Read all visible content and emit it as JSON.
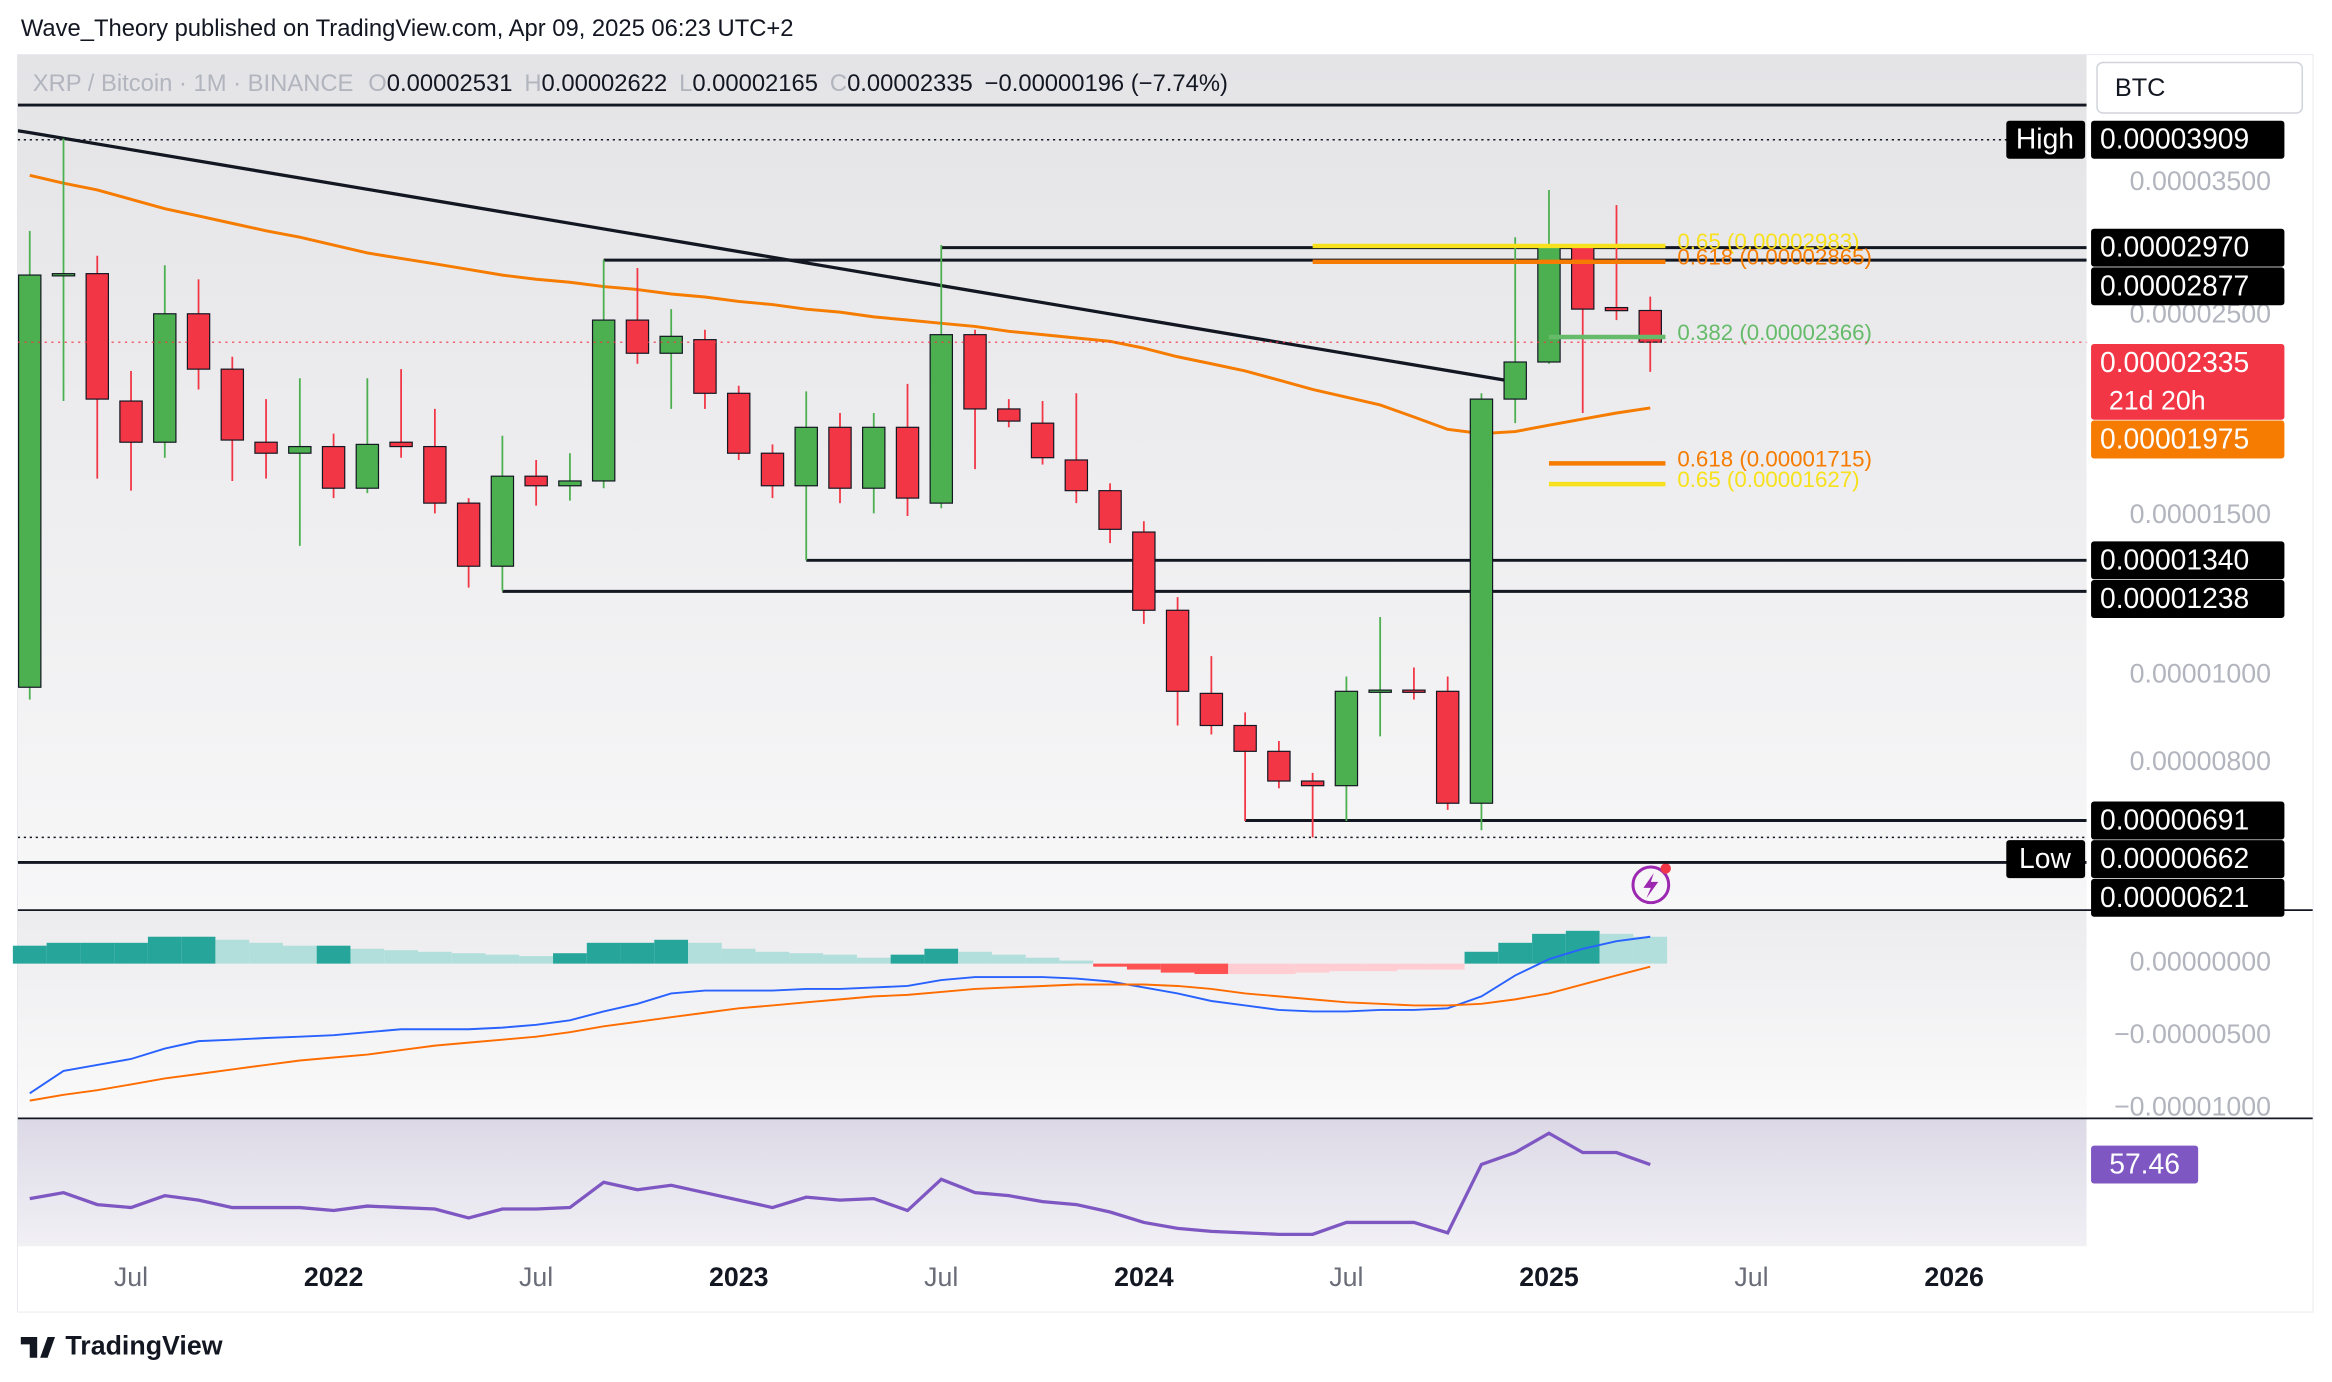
{
  "header": "Wave_Theory published on TradingView.com, Apr 09, 2025 06:23 UTC+2",
  "currency": "BTC",
  "logo": "TradingView",
  "chart_data": {
    "type": "candlestick",
    "title": "XRP / Bitcoin · 1M · BINANCE",
    "ohlc_letters": [
      "O",
      "H",
      "L",
      "C"
    ],
    "change_label": "−0.00000196 (−7.74%)",
    "countdown": "21d 20h",
    "log": true,
    "up_color": "#4caf50",
    "down_color": "#f23645",
    "x": [
      "2021-04",
      "2021-05",
      "2021-06",
      "2021-07",
      "2021-08",
      "2021-09",
      "2021-10",
      "2021-11",
      "2021-12",
      "2022-01",
      "2022-02",
      "2022-03",
      "2022-04",
      "2022-05",
      "2022-06",
      "2022-07",
      "2022-08",
      "2022-09",
      "2022-10",
      "2022-11",
      "2022-12",
      "2023-01",
      "2023-02",
      "2023-03",
      "2023-04",
      "2023-05",
      "2023-06",
      "2023-07",
      "2023-08",
      "2023-09",
      "2023-10",
      "2023-11",
      "2023-12",
      "2024-01",
      "2024-02",
      "2024-03",
      "2024-04",
      "2024-05",
      "2024-06",
      "2024-07",
      "2024-08",
      "2024-09",
      "2024-10",
      "2024-11",
      "2024-12",
      "2025-01",
      "2025-02",
      "2025-03",
      "2025-04"
    ],
    "open": [
      9.7e-06,
      2.77e-05,
      2.78e-05,
      2.01e-05,
      1.81e-05,
      2.51e-05,
      2.18e-05,
      1.81e-05,
      1.76e-05,
      1.79e-05,
      1.61e-05,
      1.81e-05,
      1.79e-05,
      1.55e-05,
      1.32e-05,
      1.66e-05,
      1.62e-05,
      1.64e-05,
      2.47e-05,
      2.27e-05,
      2.35e-05,
      2.05e-05,
      1.76e-05,
      1.62e-05,
      1.88e-05,
      1.61e-05,
      1.88e-05,
      1.55e-05,
      2.38e-05,
      1.97e-05,
      1.9e-05,
      1.73e-05,
      1.6e-05,
      1.44e-05,
      1.18e-05,
      9.55e-06,
      8.8e-06,
      8.24e-06,
      7.64e-06,
      7.55e-06,
      9.6e-06,
      9.63e-06,
      9.6e-06,
      7.22e-06,
      2.02e-05,
      2.22e-05,
      2.98e-05,
      2.55e-05,
      2.531e-05
    ],
    "high": [
      3.1e-05,
      3.92e-05,
      2.91e-05,
      2.17e-05,
      2.84e-05,
      2.74e-05,
      2.25e-05,
      2.02e-05,
      2.13e-05,
      1.85e-05,
      2.13e-05,
      2.18e-05,
      1.97e-05,
      1.57e-05,
      1.84e-05,
      1.73e-05,
      1.76e-05,
      2.88e-05,
      2.82e-05,
      2.54e-05,
      2.41e-05,
      2.09e-05,
      1.8e-05,
      2.06e-05,
      1.95e-05,
      1.95e-05,
      2.1e-05,
      2.99e-05,
      2.41e-05,
      2.02e-05,
      2.01e-05,
      2.05e-05,
      1.63e-05,
      1.48e-05,
      1.22e-05,
      1.05e-05,
      9.1e-06,
      8.46e-06,
      7.8e-06,
      9.97e-06,
      1.16e-05,
      1.02e-05,
      9.97e-06,
      2.05e-05,
      3.05e-05,
      3.44e-05,
      2.99e-05,
      3.31e-05,
      2.622e-05
    ],
    "low": [
      9.4e-06,
      2.01e-05,
      1.65e-05,
      1.6e-05,
      1.74e-05,
      2.07e-05,
      1.64e-05,
      1.65e-05,
      1.39e-05,
      1.57e-05,
      1.59e-05,
      1.74e-05,
      1.51e-05,
      1.25e-05,
      1.24e-05,
      1.54e-05,
      1.56e-05,
      1.61e-05,
      2.21e-05,
      1.97e-05,
      1.97e-05,
      1.73e-05,
      1.57e-05,
      1.34e-05,
      1.55e-05,
      1.51e-05,
      1.5e-05,
      1.53e-05,
      1.69e-05,
      1.88e-05,
      1.71e-05,
      1.55e-05,
      1.4e-05,
      1.14e-05,
      8.8e-06,
      8.6e-06,
      6.9e-06,
      7.5e-06,
      6.62e-06,
      6.9e-06,
      8.56e-06,
      9.4e-06,
      7.1e-06,
      6.74e-06,
      1.9e-05,
      2.21e-05,
      1.95e-05,
      2.47e-05,
      2.165e-05
    ],
    "close": [
      2.77e-05,
      2.78e-05,
      2.02e-05,
      1.81e-05,
      2.51e-05,
      2.18e-05,
      1.82e-05,
      1.76e-05,
      1.79e-05,
      1.61e-05,
      1.8e-05,
      1.79e-05,
      1.55e-05,
      1.32e-05,
      1.66e-05,
      1.62e-05,
      1.64e-05,
      2.47e-05,
      2.27e-05,
      2.37e-05,
      2.05e-05,
      1.76e-05,
      1.62e-05,
      1.88e-05,
      1.61e-05,
      1.88e-05,
      1.57e-05,
      2.38e-05,
      1.97e-05,
      1.91e-05,
      1.74e-05,
      1.6e-05,
      1.45e-05,
      1.18e-05,
      9.6e-06,
      8.8e-06,
      8.24e-06,
      7.64e-06,
      7.55e-06,
      9.6e-06,
      9.63e-06,
      9.6e-06,
      7.22e-06,
      2.02e-05,
      2.22e-05,
      2.98e-05,
      2.54e-05,
      2.53e-05,
      2.335e-05
    ],
    "ylim": [
      5.5e-06,
      4.85e-05
    ],
    "yticks": [
      {
        "value": 3.5e-05,
        "label": "0.00003500"
      },
      {
        "value": 2.5e-05,
        "label": "0.00002500"
      },
      {
        "value": 1.5e-05,
        "label": "0.00001500"
      },
      {
        "value": 1e-05,
        "label": "0.00001000"
      },
      {
        "value": 8e-06,
        "label": "0.00000800"
      }
    ],
    "xlim": [
      "2021-04",
      "2026-04"
    ],
    "xticks": [
      {
        "value": "2021-07",
        "label": "Jul"
      },
      {
        "value": "2022-01",
        "label": "2022"
      },
      {
        "value": "2022-07",
        "label": "Jul"
      },
      {
        "value": "2023-01",
        "label": "2023"
      },
      {
        "value": "2023-07",
        "label": "Jul"
      },
      {
        "value": "2024-01",
        "label": "2024"
      },
      {
        "value": "2024-07",
        "label": "Jul"
      },
      {
        "value": "2025-01",
        "label": "2025"
      },
      {
        "value": "2025-07",
        "label": "Jul"
      },
      {
        "value": "2026-01",
        "label": "2026"
      }
    ],
    "ma": {
      "color": "#f57c00",
      "values": [
        3.57e-05,
        3.5e-05,
        3.44e-05,
        3.36e-05,
        3.28e-05,
        3.22e-05,
        3.16e-05,
        3.1e-05,
        3.05e-05,
        2.99e-05,
        2.93e-05,
        2.89e-05,
        2.85e-05,
        2.81e-05,
        2.77e-05,
        2.74e-05,
        2.72e-05,
        2.69e-05,
        2.67e-05,
        2.64e-05,
        2.62e-05,
        2.59e-05,
        2.57e-05,
        2.54e-05,
        2.52e-05,
        2.49e-05,
        2.47e-05,
        2.45e-05,
        2.43e-05,
        2.4e-05,
        2.38e-05,
        2.36e-05,
        2.34e-05,
        2.3e-05,
        2.25e-05,
        2.21e-05,
        2.17e-05,
        2.12e-05,
        2.07e-05,
        2.03e-05,
        1.99e-05,
        1.93e-05,
        1.87e-05,
        1.85e-05,
        1.86e-05,
        1.89e-05,
        1.92e-05,
        1.95e-05,
        1.975e-05
      ]
    },
    "trendline": {
      "color": "#131722",
      "x": [
        "2021-04",
        "2024-12"
      ],
      "values": [
        3.98e-05,
        2.11e-05
      ]
    },
    "levels": [
      {
        "value": 4.27e-05
      },
      {
        "value": 3.909e-05,
        "label": "0.00003909",
        "tag": "High",
        "style": "dotted"
      },
      {
        "value": 2.97e-05,
        "label": "0.00002970",
        "start": "2023-07"
      },
      {
        "value": 2.877e-05,
        "label": "0.00002877",
        "start": "2022-09"
      },
      {
        "value": 1.34e-05,
        "label": "0.00001340",
        "start": "2023-03"
      },
      {
        "value": 1.238e-05,
        "label": "0.00001238",
        "start": "2022-06"
      },
      {
        "value": 6.91e-06,
        "label": "0.00000691",
        "start": "2024-04"
      },
      {
        "value": 6.62e-06,
        "label": "0.00000662",
        "tag": "Low",
        "style": "dotted"
      },
      {
        "value": 6.21e-06,
        "label": "0.00000621"
      }
    ],
    "fibs": [
      {
        "value": 2.983e-05,
        "label": "0.65 (0.00002983)",
        "color": "#f7e01c",
        "start": "2024-06"
      },
      {
        "value": 2.865e-05,
        "label": "0.618 (0.00002865)",
        "color": "#f57c00",
        "start": "2024-06"
      },
      {
        "value": 2.366e-05,
        "label": "0.382 (0.00002366)",
        "color": "#66bb6a",
        "start": "2025-01"
      },
      {
        "value": 1.715e-05,
        "label": "0.618 (0.00001715)",
        "color": "#f57c00",
        "start": "2025-01"
      },
      {
        "value": 1.627e-05,
        "label": "0.65 (0.00001627)",
        "color": "#f7e01c",
        "start": "2025-01"
      }
    ],
    "macd": {
      "ylim": [
        -1.07e-05,
        3.7e-06
      ],
      "yticks": [
        {
          "value": 0,
          "label": "0.00000000"
        },
        {
          "value": -5e-06,
          "label": "−0.00000500"
        },
        {
          "value": -1e-05,
          "label": "−0.00001000"
        }
      ],
      "line": {
        "color": "#2962ff",
        "values": [
          -8.97e-06,
          -7.42e-06,
          -7.01e-06,
          -6.6e-06,
          -5.88e-06,
          -5.36e-06,
          -5.26e-06,
          -5.15e-06,
          -5.05e-06,
          -4.95e-06,
          -4.74e-06,
          -4.54e-06,
          -4.54e-06,
          -4.54e-06,
          -4.43e-06,
          -4.23e-06,
          -3.92e-06,
          -3.3e-06,
          -2.78e-06,
          -2.06e-06,
          -1.86e-06,
          -1.86e-06,
          -1.86e-06,
          -1.75e-06,
          -1.75e-06,
          -1.65e-06,
          -1.55e-06,
          -1.13e-06,
          -9.3e-07,
          -9.3e-07,
          -9.3e-07,
          -1.03e-06,
          -1.24e-06,
          -1.65e-06,
          -2.06e-06,
          -2.58e-06,
          -2.89e-06,
          -3.2e-06,
          -3.3e-06,
          -3.3e-06,
          -3.2e-06,
          -3.2e-06,
          -3.09e-06,
          -2.27e-06,
          -8.2e-07,
          3.1e-07,
          1.03e-06,
          1.55e-06,
          1.86e-06
        ]
      },
      "signal": {
        "color": "#ff6d00",
        "values": [
          -9.48e-06,
          -9.07e-06,
          -8.76e-06,
          -8.35e-06,
          -7.94e-06,
          -7.63e-06,
          -7.32e-06,
          -7.01e-06,
          -6.7e-06,
          -6.49e-06,
          -6.29e-06,
          -5.98e-06,
          -5.67e-06,
          -5.46e-06,
          -5.26e-06,
          -5.05e-06,
          -4.74e-06,
          -4.33e-06,
          -4.02e-06,
          -3.71e-06,
          -3.4e-06,
          -3.09e-06,
          -2.89e-06,
          -2.68e-06,
          -2.47e-06,
          -2.27e-06,
          -2.16e-06,
          -1.96e-06,
          -1.75e-06,
          -1.65e-06,
          -1.55e-06,
          -1.44e-06,
          -1.44e-06,
          -1.44e-06,
          -1.55e-06,
          -1.75e-06,
          -2.06e-06,
          -2.27e-06,
          -2.47e-06,
          -2.68e-06,
          -2.78e-06,
          -2.89e-06,
          -2.89e-06,
          -2.78e-06,
          -2.47e-06,
          -2.06e-06,
          -1.44e-06,
          -8.2e-07,
          -2.1e-07
        ]
      },
      "histogram": {
        "colors": [
          "#26a69a",
          "#b2dfdb",
          "#ff5252",
          "#ffcdd2"
        ],
        "values": [
          1.24e-06,
          1.44e-06,
          1.44e-06,
          1.44e-06,
          1.86e-06,
          1.86e-06,
          1.65e-06,
          1.44e-06,
          1.24e-06,
          1.24e-06,
          1.03e-06,
          9.3e-07,
          8.2e-07,
          7.2e-07,
          6.2e-07,
          5.2e-07,
          7.2e-07,
          1.44e-06,
          1.44e-06,
          1.65e-06,
          1.44e-06,
          1.03e-06,
          8.2e-07,
          7.2e-07,
          6.2e-07,
          4.1e-07,
          6.2e-07,
          1.03e-06,
          8.2e-07,
          6.2e-07,
          4.1e-07,
          2.1e-07,
          -2.1e-07,
          -4.1e-07,
          -6.2e-07,
          -7.2e-07,
          -7.2e-07,
          -7.2e-07,
          -6.2e-07,
          -5.2e-07,
          -5.2e-07,
          -4.1e-07,
          -4.1e-07,
          8.2e-07,
          1.44e-06,
          2.06e-06,
          2.27e-06,
          2.06e-06,
          1.86e-06
        ]
      }
    },
    "rsi": {
      "color": "#7e57c2",
      "ylim": [
        30,
        73
      ],
      "values": [
        46,
        48,
        44,
        43,
        47,
        45.5,
        43,
        43,
        43,
        42,
        43.5,
        43,
        42.5,
        39.5,
        42.5,
        42.5,
        43,
        51.5,
        49,
        50.5,
        48,
        45.5,
        43,
        46.5,
        45.5,
        46,
        42,
        52.5,
        48,
        47,
        45,
        44,
        41.5,
        38,
        36,
        35,
        34.5,
        34,
        34,
        38,
        38,
        38,
        34.5,
        57.5,
        61.5,
        68,
        61.5,
        61.5,
        57.46
      ]
    }
  }
}
